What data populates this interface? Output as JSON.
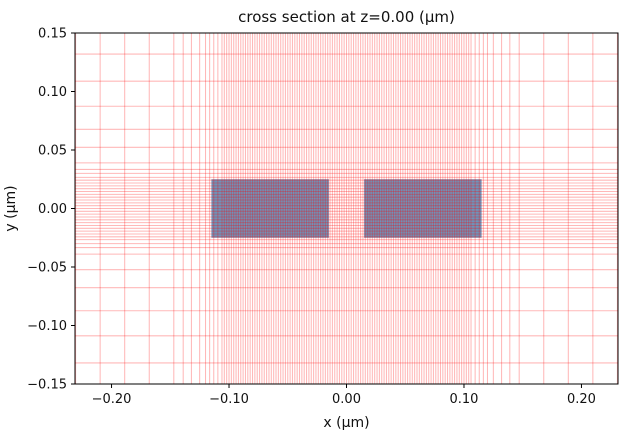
{
  "chart_data": {
    "type": "heatmap",
    "subtype": "fdtd-simulation-cross-section-with-nonuniform-mesh",
    "title": "cross section at z=0.00 (μm)",
    "xlabel": "x (μm)",
    "ylabel": "y (μm)",
    "xlim": [
      -0.2311,
      0.2311
    ],
    "ylim": [
      -0.15,
      0.15
    ],
    "x_ticks": {
      "values": [
        -0.2,
        -0.1,
        0.0,
        0.1,
        0.2
      ],
      "labels": [
        "−0.20",
        "−0.10",
        "0.00",
        "0.10",
        "0.20"
      ]
    },
    "y_ticks": {
      "values": [
        0.15,
        0.1,
        0.05,
        0.0,
        -0.05,
        -0.1,
        -0.15
      ],
      "labels": [
        "0.15",
        "0.10",
        "0.05",
        "0.00",
        "−0.05",
        "−0.10",
        "−0.15"
      ]
    },
    "grid": {
      "color": "#ff0000",
      "opacity": 0.28,
      "line_width": 1.05,
      "visible": true
    },
    "axes": {
      "spine_color": "#000000",
      "background": "#ffffff",
      "tick_length": 4
    },
    "structures": [
      {
        "name": "waveguide-left",
        "x": [
          -0.115,
          -0.015
        ],
        "y": [
          -0.025,
          0.025
        ],
        "fill": "#6e93ba"
      },
      {
        "name": "waveguide-right",
        "x": [
          0.015,
          0.115
        ],
        "y": [
          -0.025,
          0.025
        ],
        "fill": "#6e93ba"
      }
    ],
    "mesh": {
      "x_segments": [
        {
          "from": -0.2306,
          "to": -0.147,
          "n": 4
        },
        {
          "from": -0.147,
          "to": -0.139,
          "n": 1
        },
        {
          "from": -0.139,
          "to": -0.132,
          "n": 1
        },
        {
          "from": -0.132,
          "to": -0.125,
          "n": 1
        },
        {
          "from": -0.125,
          "to": -0.12,
          "n": 1
        },
        {
          "from": -0.12,
          "to": -0.106,
          "n": 4
        },
        {
          "from": -0.106,
          "to": 0.106,
          "n": 106
        },
        {
          "from": 0.106,
          "to": 0.12,
          "n": 4
        },
        {
          "from": 0.12,
          "to": 0.125,
          "n": 1
        },
        {
          "from": 0.125,
          "to": 0.132,
          "n": 1
        },
        {
          "from": 0.132,
          "to": 0.139,
          "n": 1
        },
        {
          "from": 0.139,
          "to": 0.147,
          "n": 1
        },
        {
          "from": 0.147,
          "to": 0.2306,
          "n": 4
        }
      ],
      "y_segments": [
        {
          "from": -0.132,
          "to": -0.1088,
          "n": 1
        },
        {
          "from": -0.1088,
          "to": -0.0874,
          "n": 1
        },
        {
          "from": -0.0874,
          "to": -0.0677,
          "n": 1
        },
        {
          "from": -0.0677,
          "to": -0.0523,
          "n": 1
        },
        {
          "from": -0.0523,
          "to": -0.039,
          "n": 1
        },
        {
          "from": -0.039,
          "to": -0.0334,
          "n": 1
        },
        {
          "from": -0.0334,
          "to": -0.03,
          "n": 1
        },
        {
          "from": -0.03,
          "to": -0.0266,
          "n": 1
        },
        {
          "from": -0.0266,
          "to": 0.0266,
          "n": 22
        },
        {
          "from": 0.0266,
          "to": 0.03,
          "n": 1
        },
        {
          "from": 0.03,
          "to": 0.0334,
          "n": 1
        },
        {
          "from": 0.0334,
          "to": 0.039,
          "n": 1
        },
        {
          "from": 0.039,
          "to": 0.0523,
          "n": 1
        },
        {
          "from": 0.0523,
          "to": 0.0677,
          "n": 1
        },
        {
          "from": 0.0677,
          "to": 0.0874,
          "n": 1
        },
        {
          "from": 0.0874,
          "to": 0.1088,
          "n": 1
        },
        {
          "from": 0.1088,
          "to": 0.132,
          "n": 1
        }
      ]
    }
  }
}
